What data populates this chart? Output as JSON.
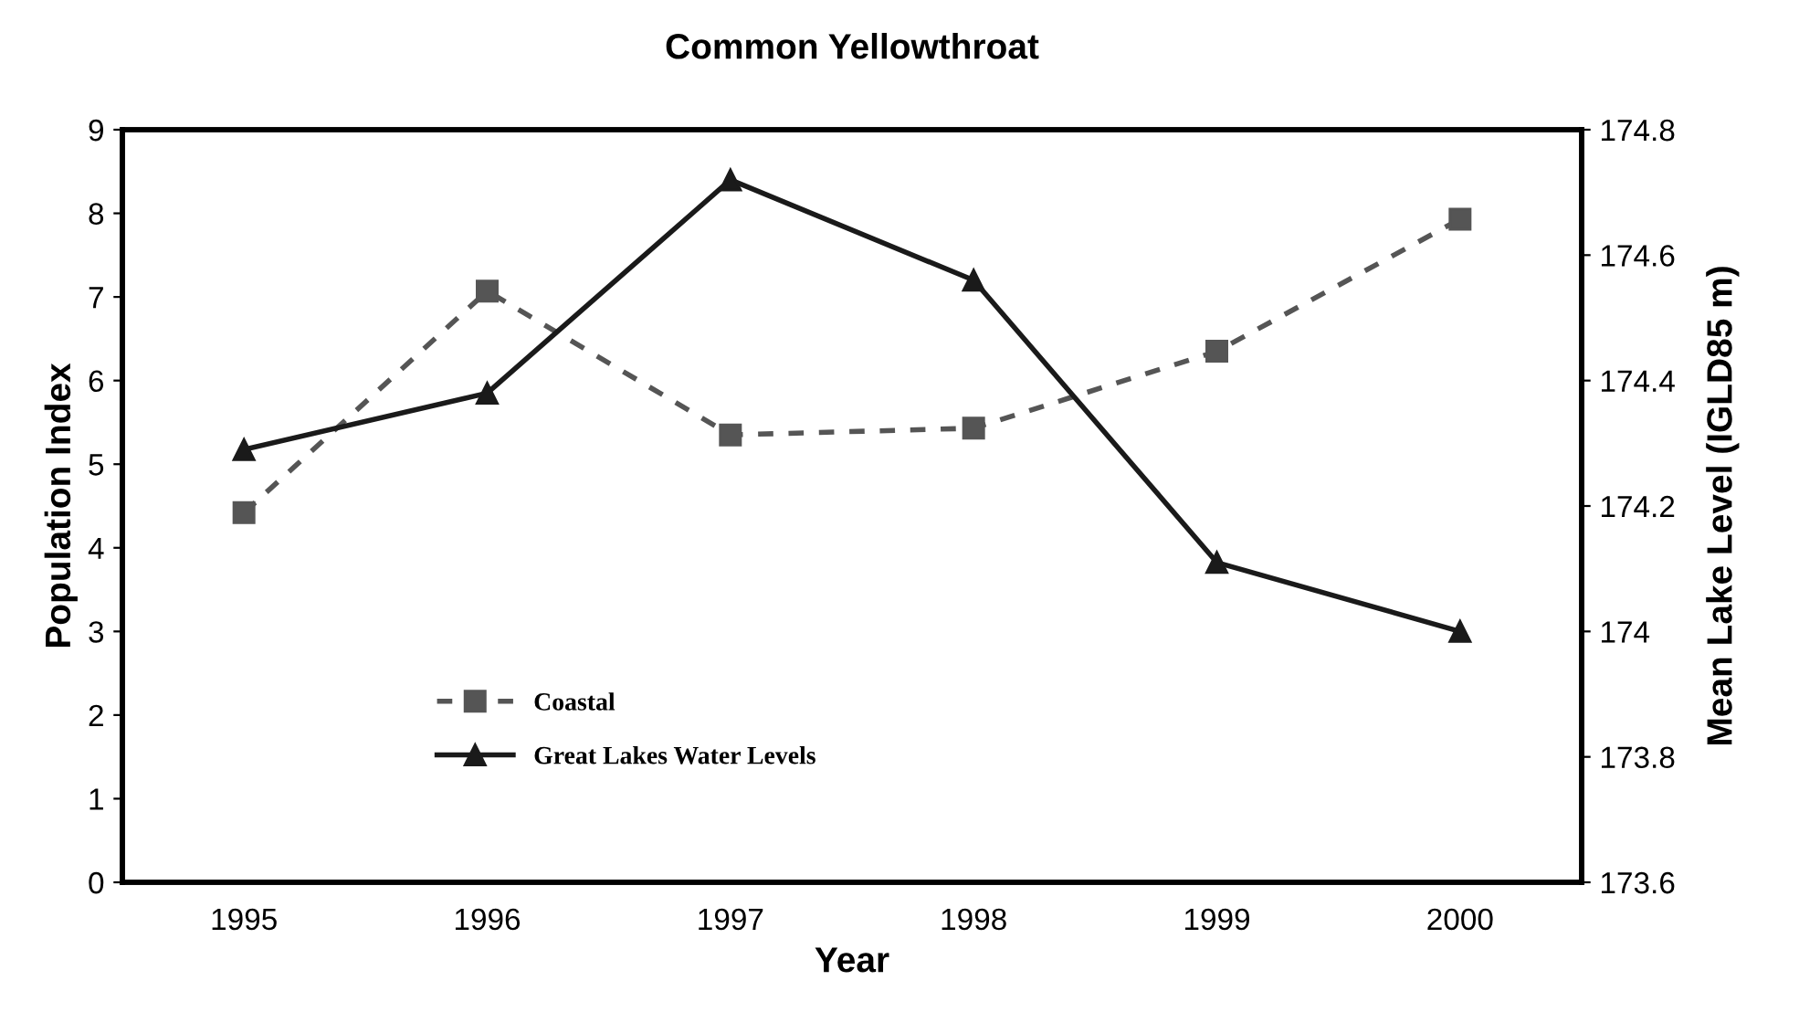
{
  "chart_data": {
    "type": "line",
    "title": "Common Yellowthroat",
    "xlabel": "Year",
    "ylabel": "Population Index",
    "y2label": "Mean Lake Level (IGLD85 m)",
    "categories": [
      "1995",
      "1996",
      "1997",
      "1998",
      "1999",
      "2000"
    ],
    "series": [
      {
        "name": "Coastal",
        "color": "#555555",
        "values": [
          4.42,
          7.07,
          5.35,
          5.43,
          6.35,
          7.93
        ],
        "marker": "square",
        "line_style": "dashed"
      },
      {
        "name": "Great Lakes Water Levels",
        "color": "#1a1a1a",
        "values": [
          174.29,
          174.38,
          174.72,
          174.56,
          174.11,
          174.0
        ],
        "marker": "triangle",
        "line_style": "solid",
        "axis": "y2"
      }
    ],
    "ylim": [
      0,
      9
    ],
    "yticks": [
      0,
      1,
      2,
      3,
      4,
      5,
      6,
      7,
      8,
      9
    ],
    "y2lim": [
      173.6,
      174.8
    ],
    "y2ticks": [
      {
        "value": 173.6,
        "label": "173.6"
      },
      {
        "value": 173.8,
        "label": "173.8"
      },
      {
        "value": 174.0,
        "label": "174"
      },
      {
        "value": 174.2,
        "label": "174.2"
      },
      {
        "value": 174.4,
        "label": "174.4"
      },
      {
        "value": 174.6,
        "label": "174.6"
      },
      {
        "value": 174.8,
        "label": "174.8"
      }
    ],
    "grid": false,
    "legend": "bottom left"
  }
}
